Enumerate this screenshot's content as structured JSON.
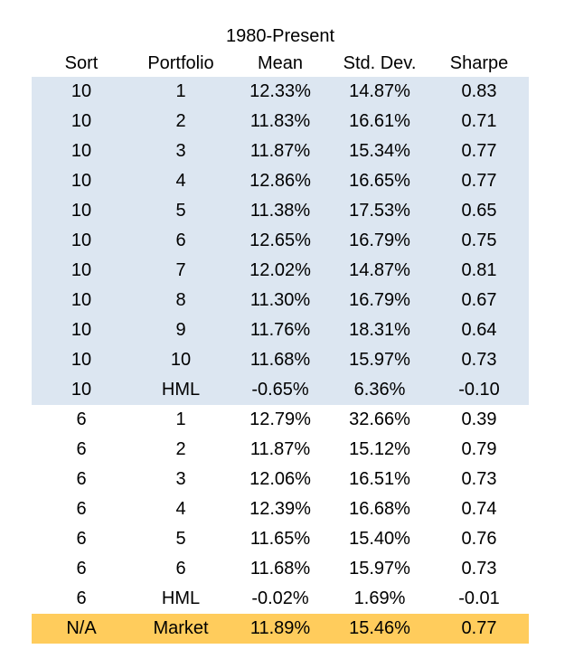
{
  "chart_data": {
    "type": "table",
    "title": "1980-Present",
    "columns": [
      "Sort",
      "Portfolio",
      "Mean",
      "Std. Dev.",
      "Sharpe"
    ],
    "rows": [
      {
        "sort": "10",
        "portfolio": "1",
        "mean": "12.33%",
        "std": "14.87%",
        "sharpe": "0.83",
        "group": "10"
      },
      {
        "sort": "10",
        "portfolio": "2",
        "mean": "11.83%",
        "std": "16.61%",
        "sharpe": "0.71",
        "group": "10"
      },
      {
        "sort": "10",
        "portfolio": "3",
        "mean": "11.87%",
        "std": "15.34%",
        "sharpe": "0.77",
        "group": "10"
      },
      {
        "sort": "10",
        "portfolio": "4",
        "mean": "12.86%",
        "std": "16.65%",
        "sharpe": "0.77",
        "group": "10"
      },
      {
        "sort": "10",
        "portfolio": "5",
        "mean": "11.38%",
        "std": "17.53%",
        "sharpe": "0.65",
        "group": "10"
      },
      {
        "sort": "10",
        "portfolio": "6",
        "mean": "12.65%",
        "std": "16.79%",
        "sharpe": "0.75",
        "group": "10"
      },
      {
        "sort": "10",
        "portfolio": "7",
        "mean": "12.02%",
        "std": "14.87%",
        "sharpe": "0.81",
        "group": "10"
      },
      {
        "sort": "10",
        "portfolio": "8",
        "mean": "11.30%",
        "std": "16.79%",
        "sharpe": "0.67",
        "group": "10"
      },
      {
        "sort": "10",
        "portfolio": "9",
        "mean": "11.76%",
        "std": "18.31%",
        "sharpe": "0.64",
        "group": "10"
      },
      {
        "sort": "10",
        "portfolio": "10",
        "mean": "11.68%",
        "std": "15.97%",
        "sharpe": "0.73",
        "group": "10"
      },
      {
        "sort": "10",
        "portfolio": "HML",
        "mean": "-0.65%",
        "std": "6.36%",
        "sharpe": "-0.10",
        "group": "10"
      },
      {
        "sort": "6",
        "portfolio": "1",
        "mean": "12.79%",
        "std": "32.66%",
        "sharpe": "0.39",
        "group": "6"
      },
      {
        "sort": "6",
        "portfolio": "2",
        "mean": "11.87%",
        "std": "15.12%",
        "sharpe": "0.79",
        "group": "6"
      },
      {
        "sort": "6",
        "portfolio": "3",
        "mean": "12.06%",
        "std": "16.51%",
        "sharpe": "0.73",
        "group": "6"
      },
      {
        "sort": "6",
        "portfolio": "4",
        "mean": "12.39%",
        "std": "16.68%",
        "sharpe": "0.74",
        "group": "6"
      },
      {
        "sort": "6",
        "portfolio": "5",
        "mean": "11.65%",
        "std": "15.40%",
        "sharpe": "0.76",
        "group": "6"
      },
      {
        "sort": "6",
        "portfolio": "6",
        "mean": "11.68%",
        "std": "15.97%",
        "sharpe": "0.73",
        "group": "6"
      },
      {
        "sort": "6",
        "portfolio": "HML",
        "mean": "-0.02%",
        "std": "1.69%",
        "sharpe": "-0.01",
        "group": "6"
      },
      {
        "sort": "N/A",
        "portfolio": "Market",
        "mean": "11.89%",
        "std": "15.46%",
        "sharpe": "0.77",
        "group": "market"
      }
    ]
  },
  "colors": {
    "sort_10_band": "#dce6f1",
    "sort_6_band": "#ffffff",
    "market_band": "#ffcc5c"
  }
}
